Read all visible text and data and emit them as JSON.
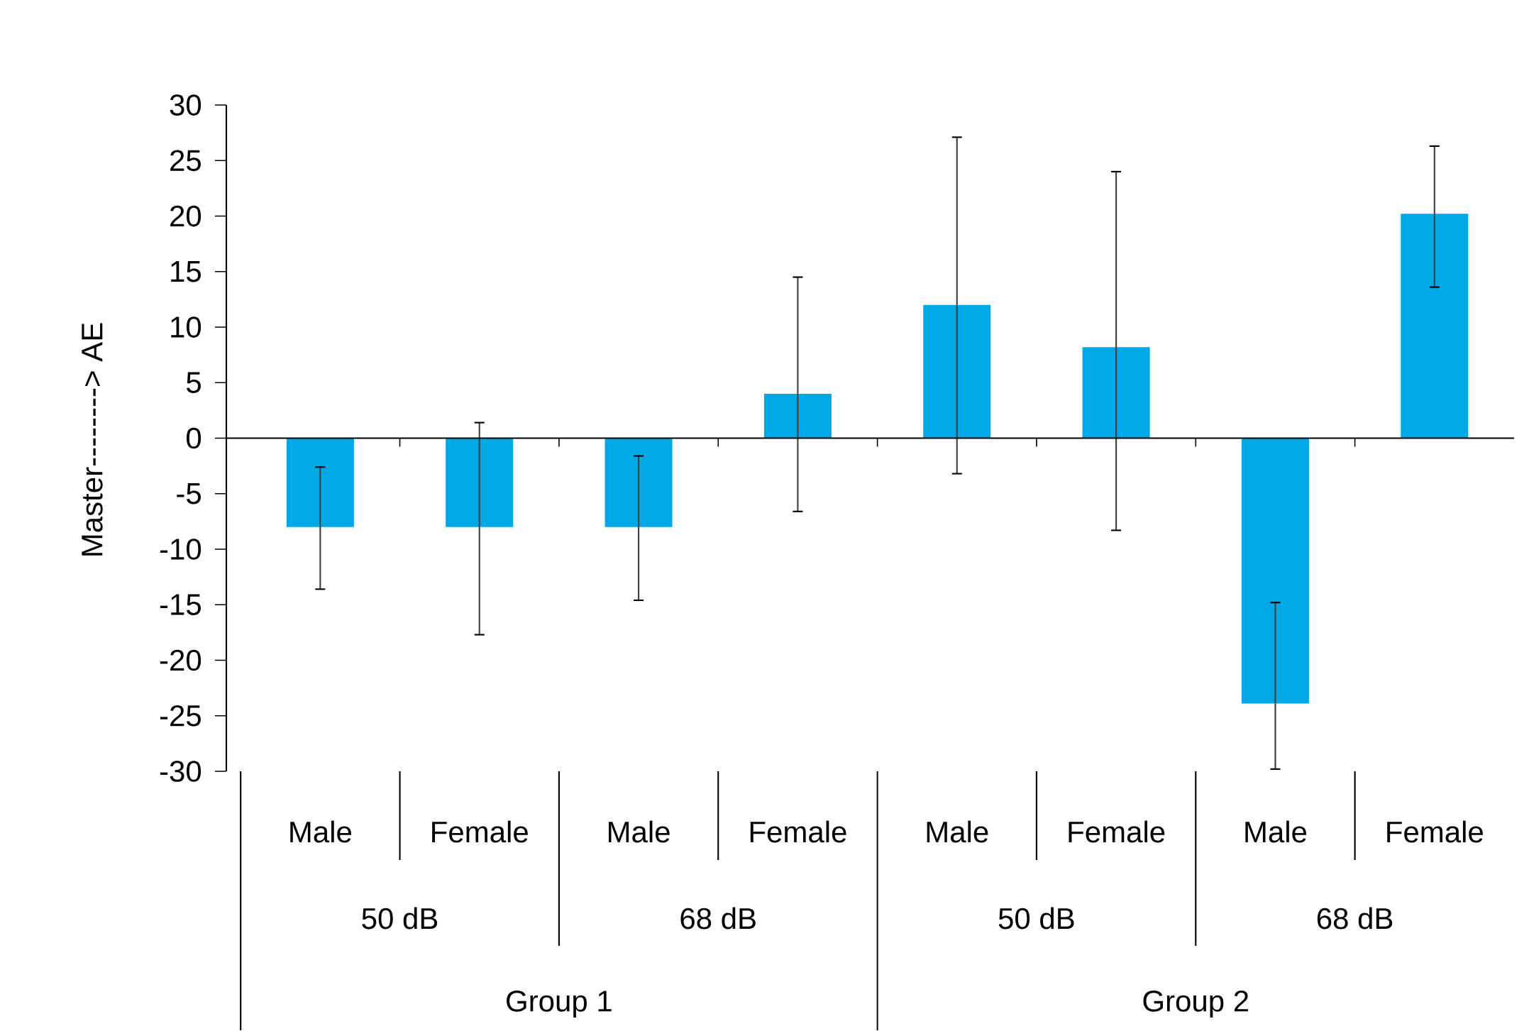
{
  "chart_data": {
    "type": "bar",
    "ylabel": "Master--------> AE",
    "categories": [
      "Male",
      "Female",
      "Male",
      "Female",
      "Male",
      "Female",
      "Male",
      "Female"
    ],
    "values": [
      -8,
      -8,
      -8,
      4,
      12,
      8.2,
      -23.9,
      20.2
    ],
    "errors": [
      [
        -13.6,
        -2.6
      ],
      [
        -17.7,
        1.4
      ],
      [
        -14.6,
        -1.6
      ],
      [
        -6.6,
        14.5
      ],
      [
        -3.2,
        27.1
      ],
      [
        -8.3,
        24.0
      ],
      [
        -29.8,
        -14.8
      ],
      [
        13.6,
        26.3
      ]
    ],
    "color": "#00a8e6",
    "ylim": [
      -30,
      30
    ],
    "yticks": [
      -30,
      -25,
      -20,
      -15,
      -10,
      -5,
      0,
      5,
      10,
      15,
      20,
      25,
      30
    ],
    "annotations": [
      "50 dB",
      "68 dB",
      "50 dB",
      "68 dB",
      "Group 1",
      "Group 2"
    ]
  }
}
